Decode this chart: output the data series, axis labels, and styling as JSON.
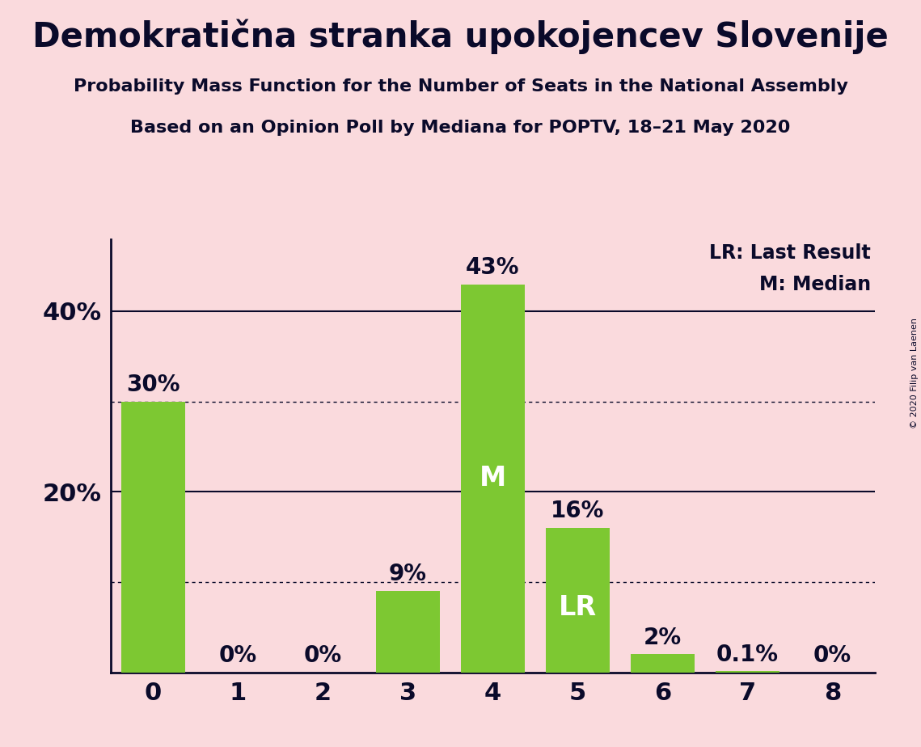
{
  "title": "Demokratična stranka upokojencev Slovenije",
  "subtitle1": "Probability Mass Function for the Number of Seats in the National Assembly",
  "subtitle2": "Based on an Opinion Poll by Mediana for POPTV, 18–21 May 2020",
  "copyright": "© 2020 Filip van Laenen",
  "categories": [
    0,
    1,
    2,
    3,
    4,
    5,
    6,
    7,
    8
  ],
  "values": [
    30,
    0,
    0,
    9,
    43,
    16,
    2,
    0.1,
    0
  ],
  "bar_color": "#7dc832",
  "background_color": "#fadadd",
  "text_color": "#0a0a2a",
  "label_texts": [
    "30%",
    "0%",
    "0%",
    "9%",
    "43%",
    "16%",
    "2%",
    "0.1%",
    "0%"
  ],
  "median_bar": 4,
  "lr_bar": 5,
  "median_label": "M",
  "lr_label": "LR",
  "legend_lr": "LR: Last Result",
  "legend_m": "M: Median",
  "ylim": [
    0,
    48
  ],
  "dotted_line_values": [
    10,
    30
  ],
  "solid_line_values": [
    20,
    40
  ],
  "ytick_labels_values": [
    20,
    40
  ],
  "ytick_labels": [
    "20%",
    "40%"
  ],
  "title_fontsize": 30,
  "subtitle_fontsize": 16,
  "axis_tick_fontsize": 22,
  "bar_label_fontsize": 20,
  "inner_label_fontsize": 24,
  "legend_fontsize": 17
}
